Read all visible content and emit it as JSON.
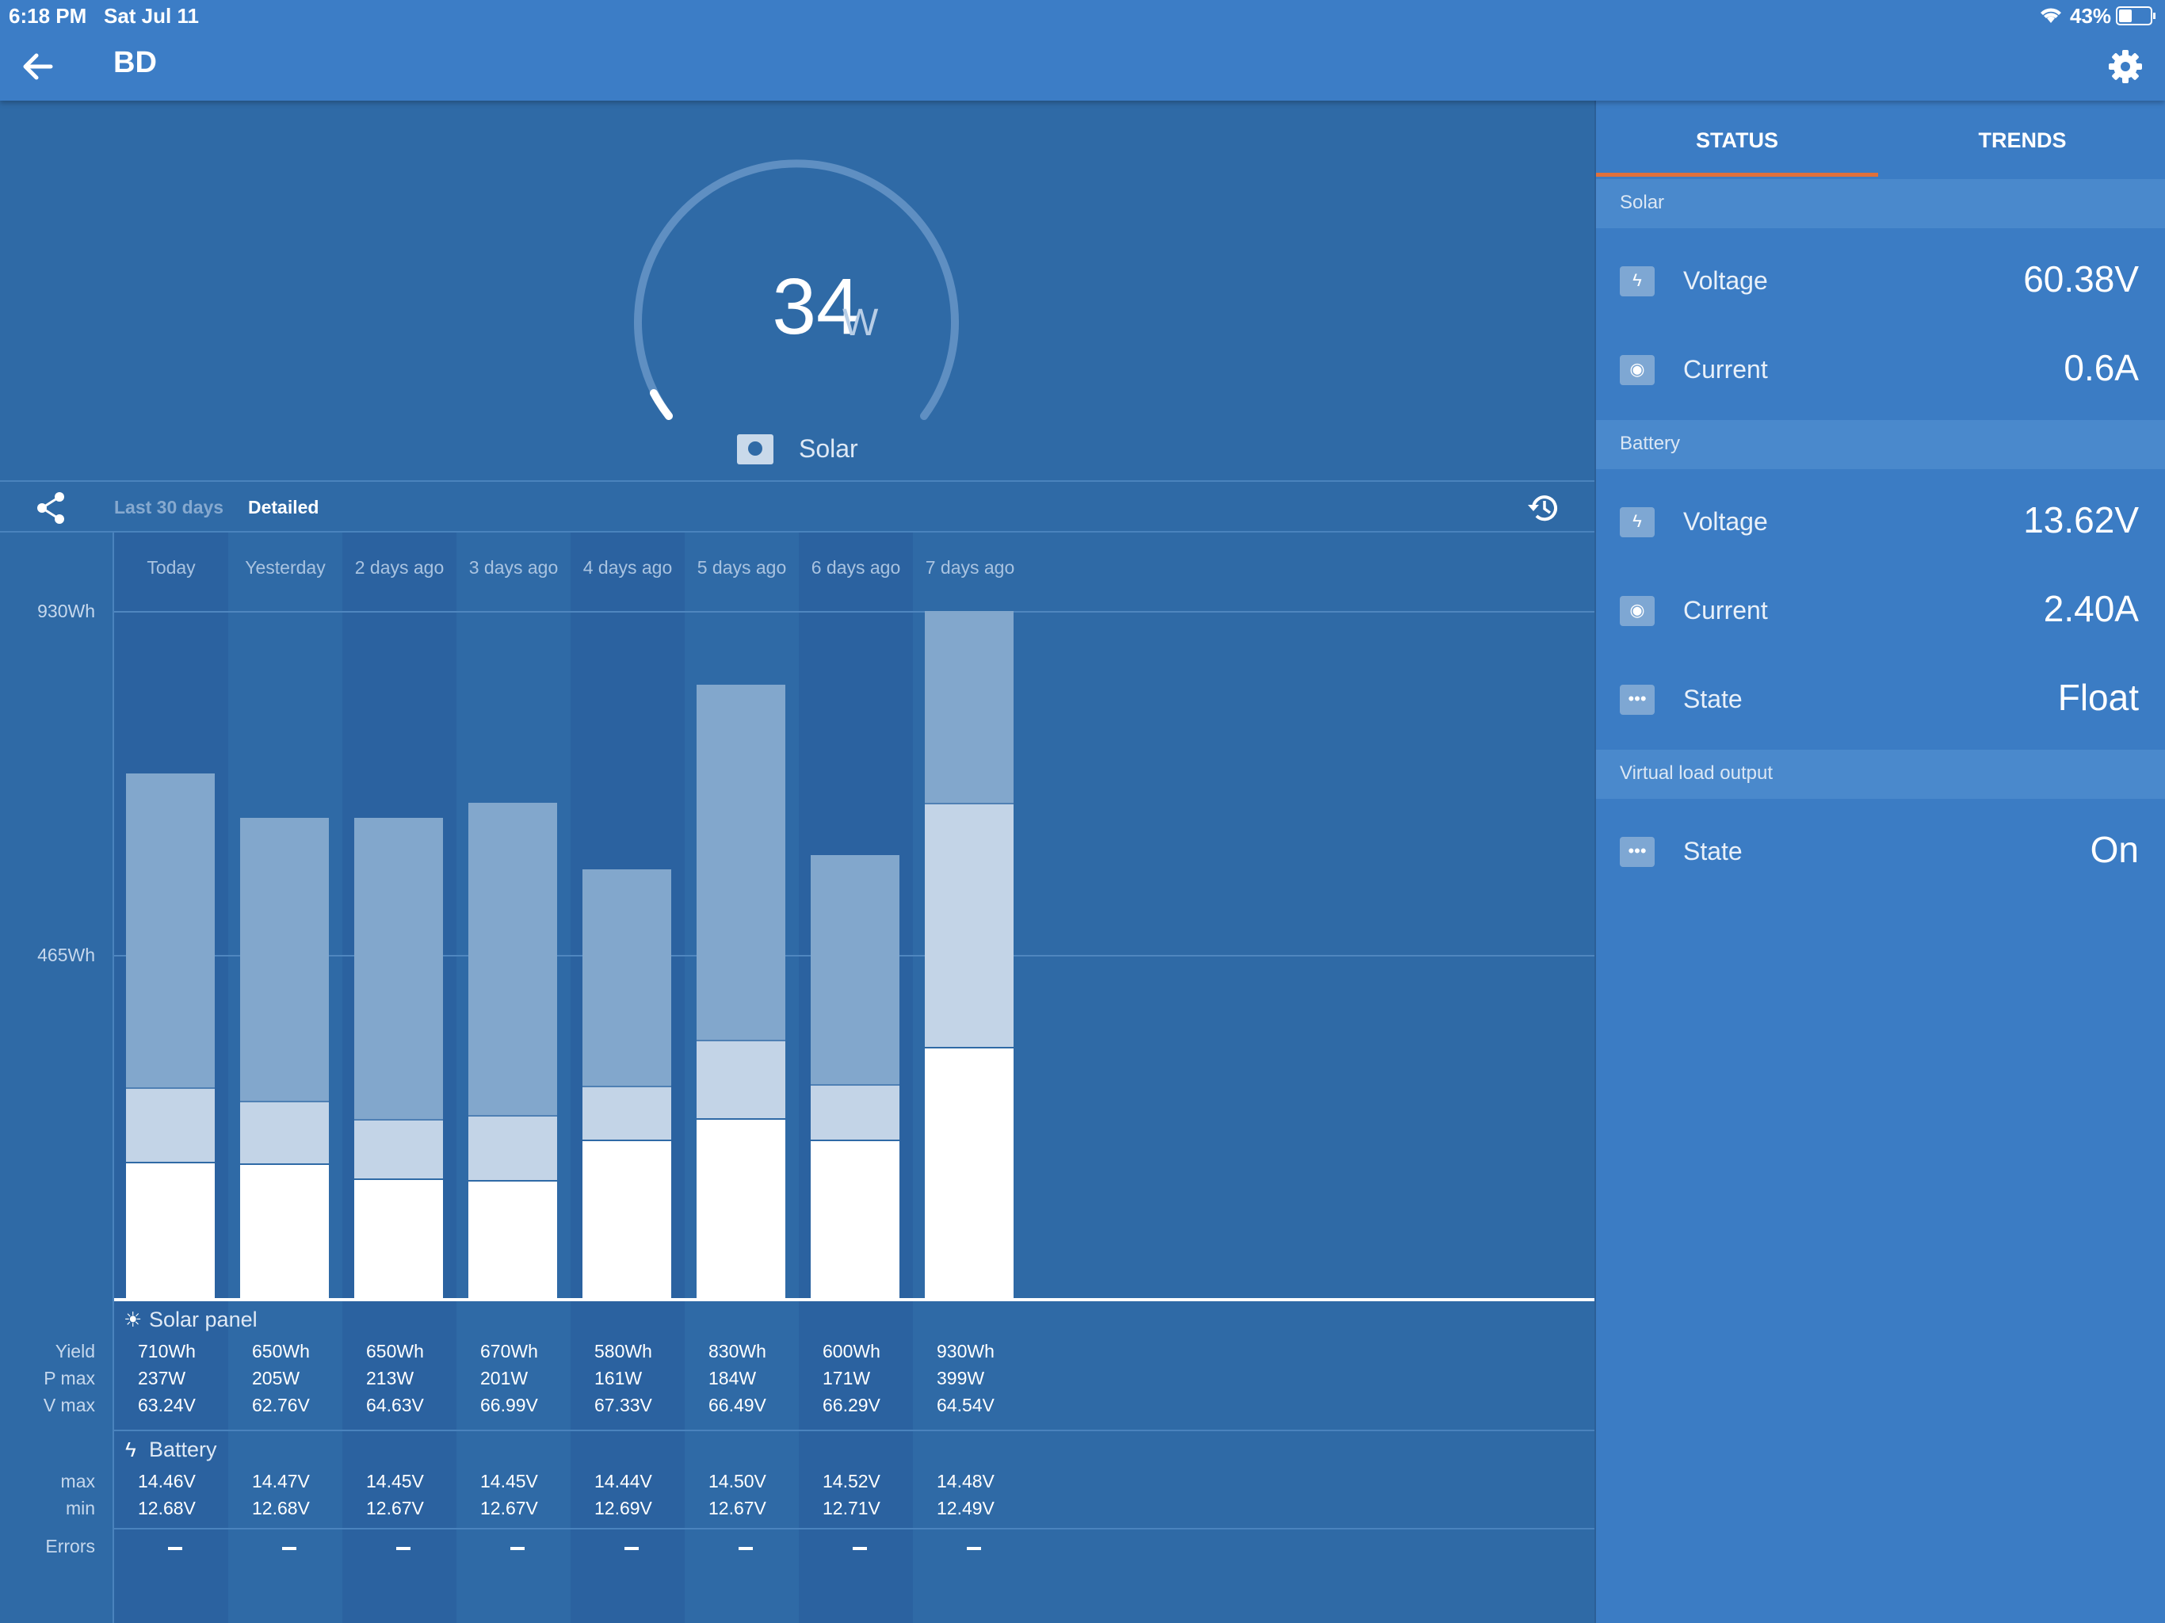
{
  "status_bar": {
    "time": "6:18 PM",
    "date": "Sat Jul 11",
    "battery": "43%"
  },
  "app_bar": {
    "title": "BD"
  },
  "gauge": {
    "value": "34",
    "unit": "W",
    "label": "Solar"
  },
  "history_tabs": {
    "last30": "Last 30 days",
    "detailed": "Detailed"
  },
  "days": [
    "Today",
    "Yesterday",
    "2 days ago",
    "3 days ago",
    "4 days ago",
    "5 days ago",
    "6 days ago",
    "7 days ago"
  ],
  "axis": {
    "max": "930Wh",
    "mid": "465Wh"
  },
  "chart_data": {
    "type": "bar",
    "stacked": true,
    "categories": [
      "Today",
      "Yesterday",
      "2 days ago",
      "3 days ago",
      "4 days ago",
      "5 days ago",
      "6 days ago",
      "7 days ago"
    ],
    "ylim": [
      0,
      930
    ],
    "y_ticks": [
      "465Wh",
      "930Wh"
    ],
    "series": [
      {
        "values": [
          185,
          182,
          162,
          160,
          215,
          243,
          215,
          340
        ],
        "color": "#ffffff"
      },
      {
        "values": [
          100,
          85,
          80,
          88,
          72,
          107,
          75,
          330
        ],
        "color": "#c3d4e7"
      },
      {
        "values": [
          425,
          383,
          408,
          422,
          293,
          480,
          310,
          260
        ],
        "color": "#82a7cc"
      }
    ],
    "totals": [
      710,
      650,
      650,
      670,
      580,
      830,
      600,
      930
    ]
  },
  "solar_table": {
    "title": "Solar panel",
    "labels": {
      "yield": "Yield",
      "pmax": "P max",
      "vmax": "V max"
    },
    "yield": [
      "710Wh",
      "650Wh",
      "650Wh",
      "670Wh",
      "580Wh",
      "830Wh",
      "600Wh",
      "930Wh"
    ],
    "pmax": [
      "237W",
      "205W",
      "213W",
      "201W",
      "161W",
      "184W",
      "171W",
      "399W"
    ],
    "vmax": [
      "63.24V",
      "62.76V",
      "64.63V",
      "66.99V",
      "67.33V",
      "66.49V",
      "66.29V",
      "64.54V"
    ]
  },
  "battery_table": {
    "title": "Battery",
    "labels": {
      "max": "max",
      "min": "min"
    },
    "max": [
      "14.46V",
      "14.47V",
      "14.45V",
      "14.45V",
      "14.44V",
      "14.50V",
      "14.52V",
      "14.48V"
    ],
    "min": [
      "12.68V",
      "12.68V",
      "12.67V",
      "12.67V",
      "12.69V",
      "12.67V",
      "12.71V",
      "12.49V"
    ]
  },
  "errors": {
    "label": "Errors"
  },
  "right_panel": {
    "tabs": {
      "status": "STATUS",
      "trends": "TRENDS"
    },
    "sections": {
      "solar": {
        "title": "Solar",
        "voltage_label": "Voltage",
        "voltage": "60.38V",
        "current_label": "Current",
        "current": "0.6A"
      },
      "battery": {
        "title": "Battery",
        "voltage_label": "Voltage",
        "voltage": "13.62V",
        "current_label": "Current",
        "current": "2.40A",
        "state_label": "State",
        "state": "Float"
      },
      "virtual_load": {
        "title": "Virtual load output",
        "state_label": "State",
        "state": "On"
      }
    }
  },
  "colors": {
    "accent": "#e0703a",
    "app_bar": "#3c7dc6",
    "panel": "#2f6aa6",
    "right_panel": "#3b7cc4"
  }
}
